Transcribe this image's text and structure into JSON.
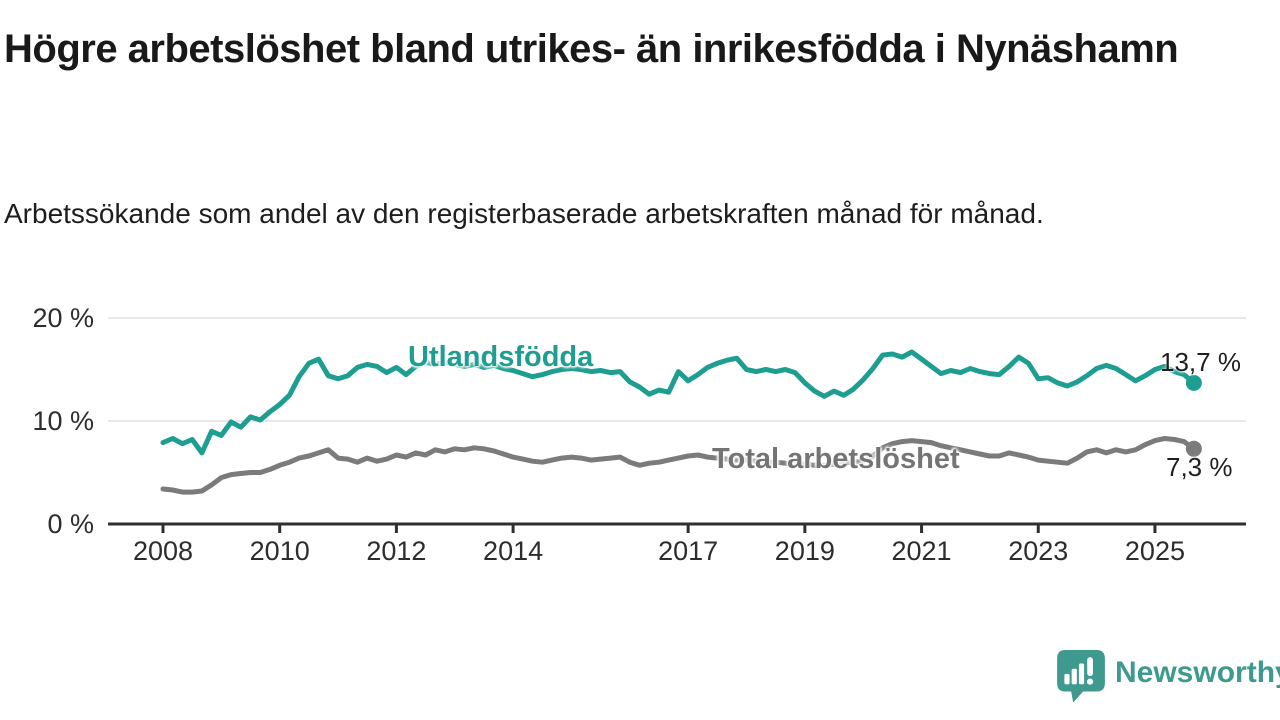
{
  "header": {
    "title": "Högre arbetslöshet bland utrikes- än inrikesfödda i Nynäshamn",
    "subtitle": "Arbetssökande som andel av den registerbaserade arbetskraften månad för månad."
  },
  "chart_data": {
    "type": "line",
    "x_start": 2008.0,
    "x_step_months": 2,
    "x_tick_years": [
      2008,
      2010,
      2012,
      2014,
      2017,
      2019,
      2021,
      2023,
      2025
    ],
    "y_ticks": [
      {
        "value": 0,
        "label": "0 %"
      },
      {
        "value": 10,
        "label": "10 %"
      },
      {
        "value": 20,
        "label": "20 %"
      }
    ],
    "ylim": [
      0,
      21
    ],
    "grid_values": [
      10,
      20
    ],
    "grid_on": true,
    "legend_position": "inline-labels",
    "series": [
      {
        "name": "Utlandsfödda",
        "color": "#1d9e90",
        "end_label": "13,7 %",
        "end_value": 13.7,
        "values": [
          7.9,
          8.3,
          7.8,
          8.2,
          6.9,
          9.0,
          8.6,
          9.9,
          9.4,
          10.4,
          10.1,
          10.9,
          11.6,
          12.5,
          14.3,
          15.6,
          16.0,
          14.4,
          14.1,
          14.4,
          15.2,
          15.5,
          15.3,
          14.7,
          15.2,
          14.5,
          15.3,
          15.7,
          15.5,
          15.7,
          15.5,
          15.3,
          15.5,
          15.2,
          15.4,
          15.1,
          14.9,
          14.6,
          14.3,
          14.5,
          14.8,
          15.0,
          15.1,
          15.0,
          14.8,
          14.9,
          14.7,
          14.8,
          13.8,
          13.3,
          12.6,
          13.0,
          12.8,
          14.8,
          13.9,
          14.5,
          15.2,
          15.6,
          15.9,
          16.1,
          15.0,
          14.8,
          15.0,
          14.8,
          15.0,
          14.7,
          13.7,
          12.9,
          12.4,
          12.9,
          12.5,
          13.1,
          14.0,
          15.1,
          16.4,
          16.5,
          16.2,
          16.7,
          16.0,
          15.3,
          14.6,
          14.9,
          14.7,
          15.1,
          14.8,
          14.6,
          14.5,
          15.3,
          16.2,
          15.6,
          14.1,
          14.2,
          13.7,
          13.4,
          13.8,
          14.4,
          15.1,
          15.4,
          15.1,
          14.5,
          13.9,
          14.4,
          15.0,
          15.3,
          14.8,
          14.5,
          13.7
        ]
      },
      {
        "name": "Total arbetslöshet",
        "color": "#7b7b7b",
        "end_label": "7,3 %",
        "end_value": 7.3,
        "values": [
          3.4,
          3.3,
          3.1,
          3.1,
          3.2,
          3.8,
          4.5,
          4.8,
          4.9,
          5.0,
          5.0,
          5.3,
          5.7,
          6.0,
          6.4,
          6.6,
          6.9,
          7.2,
          6.4,
          6.3,
          6.0,
          6.4,
          6.1,
          6.3,
          6.7,
          6.5,
          6.9,
          6.7,
          7.2,
          7.0,
          7.3,
          7.2,
          7.4,
          7.3,
          7.1,
          6.8,
          6.5,
          6.3,
          6.1,
          6.0,
          6.2,
          6.4,
          6.5,
          6.4,
          6.2,
          6.3,
          6.4,
          6.5,
          6.0,
          5.7,
          5.9,
          6.0,
          6.2,
          6.4,
          6.6,
          6.7,
          6.5,
          6.4,
          6.3,
          6.2,
          6.2,
          6.1,
          6.0,
          6.0,
          5.9,
          5.8,
          5.8,
          5.7,
          5.7,
          5.8,
          5.9,
          6.0,
          6.1,
          6.6,
          7.4,
          7.8,
          8.0,
          8.1,
          8.0,
          7.9,
          7.6,
          7.4,
          7.2,
          7.0,
          6.8,
          6.6,
          6.6,
          6.9,
          6.7,
          6.5,
          6.2,
          6.1,
          6.0,
          5.9,
          6.4,
          7.0,
          7.2,
          6.9,
          7.2,
          7.0,
          7.2,
          7.7,
          8.1,
          8.3,
          8.2,
          8.0,
          7.3
        ]
      }
    ]
  },
  "axis_colors": {
    "grid": "#e0e0e0",
    "axis": "#2f2f2f",
    "tick_label": "#2d2d2d"
  },
  "branding": {
    "wordmark": "Newsworthy",
    "accent": "#3e998f"
  }
}
